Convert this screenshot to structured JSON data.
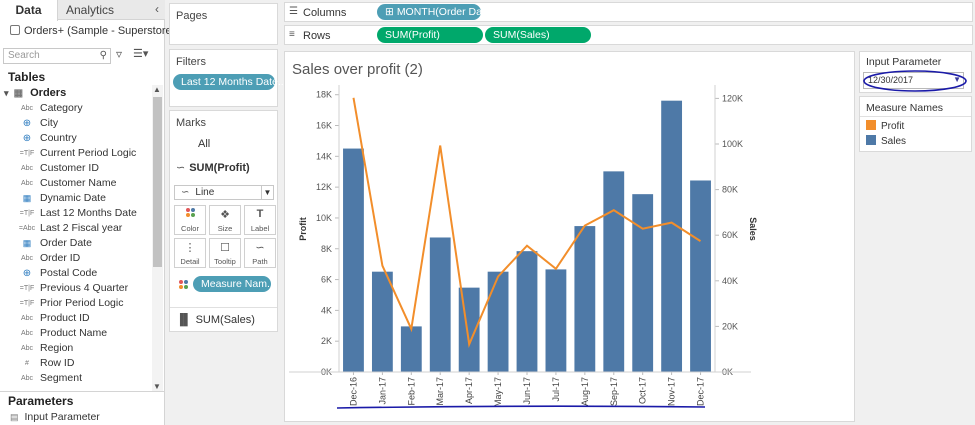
{
  "tabs": {
    "data": "Data",
    "analytics": "Analytics"
  },
  "datasource": "Orders+ (Sample - Superstore)",
  "search": {
    "placeholder": "Search"
  },
  "tables_heading": "Tables",
  "table_name": "Orders",
  "fields": [
    {
      "type": "Abc",
      "name": "Category"
    },
    {
      "type": "globe",
      "name": "City"
    },
    {
      "type": "globe",
      "name": "Country"
    },
    {
      "type": "=T|F",
      "name": "Current Period Logic"
    },
    {
      "type": "Abc",
      "name": "Customer ID"
    },
    {
      "type": "Abc",
      "name": "Customer Name"
    },
    {
      "type": "date",
      "name": "Dynamic Date"
    },
    {
      "type": "=T|F",
      "name": "Last 12 Months Date"
    },
    {
      "type": "=Abc",
      "name": "Last 2 Fiscal year"
    },
    {
      "type": "date",
      "name": "Order Date"
    },
    {
      "type": "Abc",
      "name": "Order ID"
    },
    {
      "type": "globe",
      "name": "Postal Code"
    },
    {
      "type": "=T|F",
      "name": "Previous 4 Quarter"
    },
    {
      "type": "=T|F",
      "name": "Prior Period Logic"
    },
    {
      "type": "Abc",
      "name": "Product ID"
    },
    {
      "type": "Abc",
      "name": "Product Name"
    },
    {
      "type": "Abc",
      "name": "Region"
    },
    {
      "type": "#",
      "name": "Row ID"
    },
    {
      "type": "Abc",
      "name": "Segment"
    }
  ],
  "parameters_heading": "Parameters",
  "parameter_item": "Input Parameter",
  "shelves": {
    "pages": "Pages",
    "filters": "Filters",
    "filter_pill": "Last 12 Months Date..",
    "marks": "Marks",
    "marks_all": "All",
    "marks_sumprofit": "SUM(Profit)",
    "mark_type": "Line",
    "mark_buttons": [
      "Color",
      "Size",
      "Label",
      "Detail",
      "Tooltip",
      "Path"
    ],
    "measure_names_pill": "Measure Nam..",
    "marks_sumsales": "SUM(Sales)",
    "columns_label": "Columns",
    "columns_pill": "MONTH(Order Da..",
    "rows_label": "Rows",
    "rows_pills": [
      "SUM(Profit)",
      "SUM(Sales)"
    ]
  },
  "right_panel": {
    "input_parameter_title": "Input Parameter",
    "input_parameter_value": "12/30/2017",
    "measure_names_title": "Measure Names",
    "legend": [
      {
        "name": "Profit",
        "color": "#f28e2b"
      },
      {
        "name": "Sales",
        "color": "#4e79a7"
      }
    ]
  },
  "chart_data": {
    "type": "bar",
    "title": "Sales over profit (2)",
    "categories": [
      "Dec-16",
      "Jan-17",
      "Feb-17",
      "Mar-17",
      "Apr-17",
      "May-17",
      "Jun-17",
      "Jul-17",
      "Aug-17",
      "Sep-17",
      "Oct-17",
      "Nov-17",
      "Dec-17"
    ],
    "series": [
      {
        "name": "Sales",
        "axis": "right",
        "mark": "bar",
        "color": "#4e79a7",
        "values": [
          98000,
          44000,
          20000,
          59000,
          37000,
          44000,
          53000,
          45000,
          64000,
          88000,
          78000,
          119000,
          84000
        ]
      },
      {
        "name": "Profit",
        "axis": "left",
        "mark": "line",
        "color": "#f28e2b",
        "values": [
          17800,
          6900,
          2800,
          14700,
          1800,
          6200,
          8200,
          6700,
          9500,
          10500,
          9300,
          9700,
          8500
        ]
      }
    ],
    "ylabel": "Profit",
    "ylim": [
      0,
      18500
    ],
    "yticks": [
      "0K",
      "2K",
      "4K",
      "6K",
      "8K",
      "10K",
      "12K",
      "14K",
      "16K",
      "18K"
    ],
    "y2label": "Sales",
    "y2lim": [
      0,
      125000
    ],
    "y2ticks": [
      "0K",
      "20K",
      "40K",
      "60K",
      "80K",
      "100K",
      "120K"
    ],
    "grid": false
  }
}
